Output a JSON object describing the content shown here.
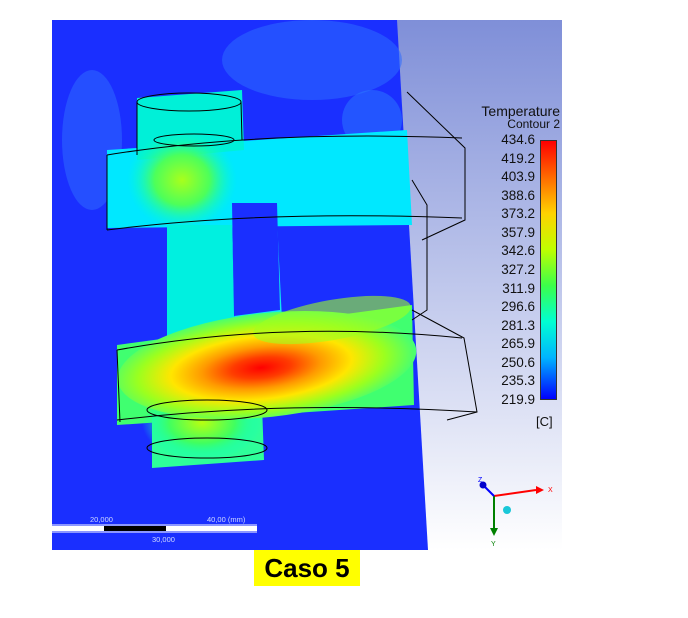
{
  "legend": {
    "title": "Temperature",
    "subtitle": "Contour 2",
    "unit": "[C]",
    "ticks": [
      "434.6",
      "419.2",
      "403.9",
      "388.6",
      "373.2",
      "357.9",
      "342.6",
      "327.2",
      "311.9",
      "296.6",
      "281.3",
      "265.9",
      "250.6",
      "235.3",
      "219.9"
    ],
    "color_max": "#ff0000",
    "color_min": "#0000ff"
  },
  "scale_bar": {
    "upper_left": "20,000",
    "upper_right": "40,00 (mm)",
    "lower_mid": "30,000"
  },
  "triad": {
    "x_label": "X",
    "y_label": "Y",
    "z_label": "Z",
    "x_color": "#ff0000",
    "y_color": "#008000",
    "z_color": "#0000ff"
  },
  "caption": "Caso 5"
}
